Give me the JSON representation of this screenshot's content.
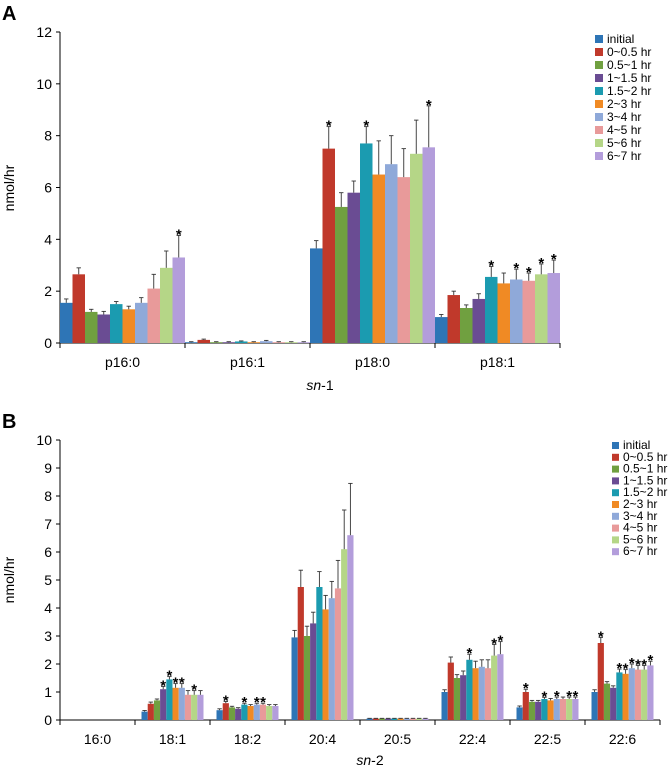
{
  "chart_data": [
    {
      "type": "bar",
      "panel_label": "A",
      "title": "",
      "xlabel_italic": "sn",
      "xlabel_rest": "-1",
      "ylabel": "nmol/hr",
      "ylim": [
        0,
        12
      ],
      "ytick_labels": [
        "0",
        "2",
        "4",
        "6",
        "8",
        "10",
        "12"
      ],
      "legend_position": "top-right",
      "categories": [
        "p16:0",
        "p16:1",
        "p18:0",
        "p18:1"
      ],
      "series": [
        {
          "name": "initial",
          "color": "#2e75b6",
          "values": [
            1.55,
            0.03,
            3.65,
            1.0
          ],
          "errors": [
            0.15,
            0.02,
            0.3,
            0.1
          ],
          "significant": [
            false,
            false,
            false,
            false
          ]
        },
        {
          "name": "0~0.5 hr",
          "color": "#c0392b",
          "values": [
            2.65,
            0.12,
            7.5,
            1.85
          ],
          "errors": [
            0.25,
            0.03,
            0.85,
            0.15
          ],
          "significant": [
            false,
            false,
            true,
            false
          ]
        },
        {
          "name": "0.5~1 hr",
          "color": "#70a040",
          "values": [
            1.2,
            0.03,
            5.25,
            1.35
          ],
          "errors": [
            0.1,
            0.02,
            0.55,
            0.12
          ],
          "significant": [
            false,
            false,
            false,
            false
          ]
        },
        {
          "name": "1~1.5 hr",
          "color": "#6a4c93",
          "values": [
            1.1,
            0.03,
            5.8,
            1.7
          ],
          "errors": [
            0.12,
            0.02,
            0.45,
            0.2
          ],
          "significant": [
            false,
            false,
            false,
            false
          ]
        },
        {
          "name": "1.5~2 hr",
          "color": "#1b9bb0",
          "values": [
            1.5,
            0.06,
            7.7,
            2.55
          ],
          "errors": [
            0.1,
            0.02,
            0.65,
            0.4
          ],
          "significant": [
            false,
            false,
            true,
            true
          ]
        },
        {
          "name": "2~3 hr",
          "color": "#f08a24",
          "values": [
            1.3,
            0.03,
            6.5,
            2.3
          ],
          "errors": [
            0.12,
            0.02,
            1.3,
            0.4
          ],
          "significant": [
            false,
            false,
            false,
            false
          ]
        },
        {
          "name": "3~4 hr",
          "color": "#8fa9d9",
          "values": [
            1.55,
            0.07,
            6.9,
            2.45
          ],
          "errors": [
            0.2,
            0.03,
            1.1,
            0.4
          ],
          "significant": [
            false,
            false,
            false,
            true
          ]
        },
        {
          "name": "4~5 hr",
          "color": "#e89a9a",
          "values": [
            2.1,
            0.03,
            6.4,
            2.4
          ],
          "errors": [
            0.55,
            0.02,
            1.1,
            0.3
          ],
          "significant": [
            false,
            false,
            false,
            true
          ]
        },
        {
          "name": "5~6 hr",
          "color": "#b5d687",
          "values": [
            2.9,
            0.03,
            7.3,
            2.65
          ],
          "errors": [
            0.65,
            0.02,
            1.3,
            0.4
          ],
          "significant": [
            false,
            false,
            false,
            true
          ]
        },
        {
          "name": "6~7 hr",
          "color": "#b39ddb",
          "values": [
            3.3,
            0.03,
            7.55,
            2.7
          ],
          "errors": [
            0.85,
            0.02,
            1.6,
            0.5
          ],
          "significant": [
            true,
            false,
            true,
            true
          ]
        }
      ]
    },
    {
      "type": "bar",
      "panel_label": "B",
      "title": "",
      "xlabel_italic": "sn",
      "xlabel_rest": "-2",
      "ylabel": "nmol/hr",
      "ylim": [
        0,
        10
      ],
      "ytick_labels": [
        "0",
        "1",
        "2",
        "3",
        "4",
        "5",
        "6",
        "7",
        "8",
        "9",
        "10"
      ],
      "legend_position": "top-right",
      "categories": [
        "16:0",
        "18:1",
        "18:2",
        "20:4",
        "20:5",
        "22:4",
        "22:5",
        "22:6"
      ],
      "series": [
        {
          "name": "initial",
          "color": "#2e75b6",
          "values": [
            0.0,
            0.3,
            0.35,
            2.95,
            0.05,
            1.0,
            0.45,
            1.0
          ],
          "errors": [
            0,
            0.04,
            0.05,
            0.25,
            0.01,
            0.08,
            0.05,
            0.08
          ],
          "significant": [
            false,
            false,
            false,
            false,
            false,
            false,
            false,
            false
          ]
        },
        {
          "name": "0~0.5 hr",
          "color": "#c0392b",
          "values": [
            0.0,
            0.58,
            0.6,
            4.75,
            0.05,
            2.05,
            1.0,
            2.75
          ],
          "errors": [
            0,
            0.06,
            0.06,
            0.6,
            0.01,
            0.2,
            0.1,
            0.2
          ],
          "significant": [
            false,
            false,
            true,
            false,
            false,
            false,
            true,
            true
          ]
        },
        {
          "name": "0.5~1 hr",
          "color": "#70a040",
          "values": [
            0.0,
            0.7,
            0.45,
            3.0,
            0.05,
            1.5,
            0.65,
            1.3
          ],
          "errors": [
            0,
            0.05,
            0.04,
            0.35,
            0.01,
            0.12,
            0.05,
            0.07
          ],
          "significant": [
            false,
            false,
            false,
            false,
            false,
            false,
            false,
            false
          ]
        },
        {
          "name": "1~1.5 hr",
          "color": "#6a4c93",
          "values": [
            0.0,
            1.1,
            0.4,
            3.45,
            0.05,
            1.6,
            0.65,
            1.15
          ],
          "errors": [
            0,
            0.1,
            0.04,
            0.4,
            0.01,
            0.15,
            0.05,
            0.07
          ],
          "significant": [
            false,
            true,
            false,
            false,
            false,
            false,
            false,
            false
          ]
        },
        {
          "name": "1.5~2 hr",
          "color": "#1b9bb0",
          "values": [
            0.0,
            1.45,
            0.55,
            4.75,
            0.05,
            2.15,
            0.75,
            1.7
          ],
          "errors": [
            0,
            0.1,
            0.05,
            0.55,
            0.01,
            0.2,
            0.06,
            0.12
          ],
          "significant": [
            false,
            true,
            true,
            false,
            false,
            true,
            true,
            true
          ]
        },
        {
          "name": "2~3 hr",
          "color": "#f08a24",
          "values": [
            0.0,
            1.15,
            0.5,
            3.95,
            0.05,
            1.85,
            0.7,
            1.65
          ],
          "errors": [
            0,
            0.15,
            0.05,
            0.5,
            0.01,
            0.25,
            0.07,
            0.15
          ],
          "significant": [
            false,
            true,
            false,
            false,
            false,
            false,
            false,
            true
          ]
        },
        {
          "name": "3~4 hr",
          "color": "#8fa9d9",
          "values": [
            0.0,
            1.15,
            0.55,
            4.35,
            0.05,
            1.9,
            0.75,
            1.85
          ],
          "errors": [
            0,
            0.15,
            0.05,
            0.6,
            0.01,
            0.25,
            0.07,
            0.15
          ],
          "significant": [
            false,
            true,
            true,
            false,
            false,
            false,
            true,
            true
          ]
        },
        {
          "name": "4~5 hr",
          "color": "#e89a9a",
          "values": [
            0.0,
            0.9,
            0.55,
            4.7,
            0.05,
            1.85,
            0.75,
            1.8
          ],
          "errors": [
            0,
            0.15,
            0.05,
            1.0,
            0.01,
            0.3,
            0.07,
            0.15
          ],
          "significant": [
            false,
            false,
            true,
            false,
            false,
            false,
            false,
            true
          ]
        },
        {
          "name": "5~6 hr",
          "color": "#b5d687",
          "values": [
            0.0,
            0.9,
            0.5,
            6.1,
            0.05,
            2.3,
            0.75,
            1.8
          ],
          "errors": [
            0,
            0.15,
            0.05,
            1.4,
            0.01,
            0.4,
            0.07,
            0.15
          ],
          "significant": [
            false,
            true,
            false,
            false,
            false,
            true,
            true,
            true
          ]
        },
        {
          "name": "6~7 hr",
          "color": "#b39ddb",
          "values": [
            0.0,
            0.9,
            0.5,
            6.6,
            0.05,
            2.35,
            0.75,
            1.95
          ],
          "errors": [
            0,
            0.15,
            0.05,
            1.85,
            0.01,
            0.45,
            0.07,
            0.15
          ],
          "significant": [
            false,
            false,
            false,
            false,
            false,
            true,
            true,
            true
          ]
        }
      ]
    }
  ]
}
